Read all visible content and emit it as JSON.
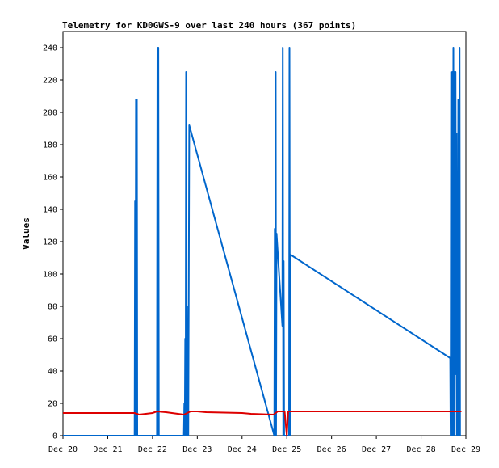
{
  "chart_data": {
    "type": "line",
    "title": "Telemetry for KD0GWS-9 over last 240 hours (367 points)",
    "xlabel": "",
    "ylabel": "Values",
    "xlim": [
      0,
      9
    ],
    "ylim": [
      0,
      250
    ],
    "yticks": [
      0,
      20,
      40,
      60,
      80,
      100,
      120,
      140,
      160,
      180,
      200,
      220,
      240
    ],
    "xticks": [
      {
        "x": 0,
        "label": "Dec 20"
      },
      {
        "x": 1,
        "label": "Dec 21"
      },
      {
        "x": 2,
        "label": "Dec 22"
      },
      {
        "x": 3,
        "label": "Dec 23"
      },
      {
        "x": 4,
        "label": "Dec 24"
      },
      {
        "x": 5,
        "label": "Dec 25"
      },
      {
        "x": 6,
        "label": "Dec 26"
      },
      {
        "x": 7,
        "label": "Dec 27"
      },
      {
        "x": 8,
        "label": "Dec 28"
      },
      {
        "x": 9,
        "label": "Dec 29"
      }
    ],
    "series": [
      {
        "color": "#0066cc",
        "points": [
          [
            0,
            0
          ],
          [
            1.6,
            0
          ],
          [
            1.61,
            145
          ],
          [
            1.62,
            0
          ],
          [
            1.63,
            208
          ],
          [
            1.64,
            0
          ],
          [
            1.65,
            208
          ],
          [
            1.66,
            0
          ],
          [
            2.1,
            0
          ],
          [
            2.11,
            240
          ],
          [
            2.12,
            0
          ],
          [
            2.13,
            240
          ],
          [
            2.14,
            0
          ],
          [
            2.7,
            0
          ],
          [
            2.71,
            20
          ],
          [
            2.72,
            0
          ],
          [
            2.73,
            60
          ],
          [
            2.74,
            0
          ],
          [
            2.75,
            225
          ],
          [
            2.76,
            0
          ],
          [
            2.77,
            80
          ],
          [
            2.78,
            0
          ],
          [
            2.79,
            40
          ],
          [
            2.8,
            0
          ],
          [
            2.82,
            192
          ],
          [
            4.72,
            0
          ],
          [
            4.73,
            128
          ],
          [
            4.74,
            0
          ],
          [
            4.75,
            225
          ],
          [
            4.76,
            0
          ],
          [
            4.77,
            125
          ],
          [
            4.9,
            68
          ],
          [
            4.91,
            240
          ],
          [
            4.92,
            0
          ],
          [
            4.93,
            108
          ],
          [
            4.94,
            0
          ],
          [
            5.05,
            0
          ],
          [
            5.06,
            240
          ],
          [
            5.07,
            0
          ],
          [
            5.08,
            112
          ],
          [
            8.65,
            48
          ],
          [
            8.66,
            0
          ],
          [
            8.67,
            225
          ],
          [
            8.68,
            0
          ],
          [
            8.7,
            225
          ],
          [
            8.71,
            0
          ],
          [
            8.72,
            240
          ],
          [
            8.73,
            0
          ],
          [
            8.74,
            225
          ],
          [
            8.75,
            0
          ],
          [
            8.77,
            225
          ],
          [
            8.78,
            38
          ],
          [
            8.79,
            187
          ],
          [
            8.8,
            0
          ],
          [
            8.81,
            112
          ],
          [
            8.82,
            0
          ],
          [
            8.83,
            208
          ],
          [
            8.84,
            0
          ],
          [
            8.86,
            240
          ],
          [
            8.87,
            0
          ]
        ]
      },
      {
        "color": "#dd0000",
        "points": [
          [
            0,
            14
          ],
          [
            1.6,
            14
          ],
          [
            1.7,
            13
          ],
          [
            2.0,
            14
          ],
          [
            2.1,
            15
          ],
          [
            2.3,
            14.5
          ],
          [
            2.7,
            13
          ],
          [
            2.85,
            15
          ],
          [
            3.0,
            15
          ],
          [
            3.2,
            14.5
          ],
          [
            4.0,
            14
          ],
          [
            4.2,
            13.5
          ],
          [
            4.7,
            13
          ],
          [
            4.8,
            15
          ],
          [
            4.95,
            15
          ],
          [
            5.0,
            0
          ],
          [
            5.03,
            15
          ],
          [
            8.6,
            15
          ],
          [
            8.7,
            15
          ],
          [
            8.9,
            15
          ]
        ]
      }
    ]
  }
}
